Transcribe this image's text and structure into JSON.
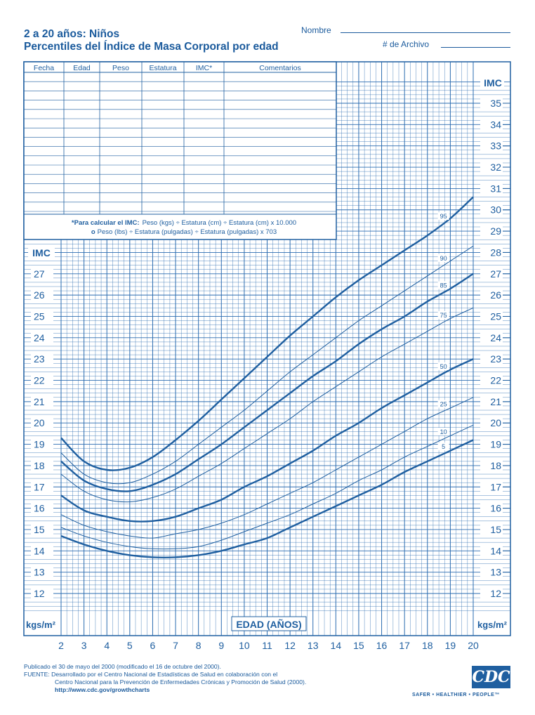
{
  "header": {
    "title_line1": "2 a 20 años: Niños",
    "title_line2": "Percentiles del Índice de Masa Corporal por edad",
    "name_label": "Nombre",
    "record_label": "# de Archivo"
  },
  "record_table": {
    "columns": [
      "Fecha",
      "Edad",
      "Peso",
      "Estatura",
      "IMC*",
      "Comentarios"
    ],
    "formula_line1_bold": "*Para calcular el IMC:",
    "formula_line1": "Peso (kgs) ÷ Estatura (cm) ÷ Estatura (cm) x 10.000",
    "formula_line2_bold": "o",
    "formula_line2": "Peso (lbs) ÷ Estatura (pulgadas) ÷ Estatura (pulgadas) x 703"
  },
  "chart_data": {
    "type": "line",
    "xlabel": "EDAD (AÑOS)",
    "ylabel": "IMC",
    "unit_label": "kgs/m²",
    "xlim": [
      2,
      20
    ],
    "ylim": [
      11,
      37
    ],
    "x_ticks": [
      2,
      3,
      4,
      5,
      6,
      7,
      8,
      9,
      10,
      11,
      12,
      13,
      14,
      15,
      16,
      17,
      18,
      19,
      20
    ],
    "y_ticks_right": [
      12,
      13,
      14,
      15,
      16,
      17,
      18,
      19,
      20,
      21,
      22,
      23,
      24,
      25,
      26,
      27,
      28,
      29,
      30,
      31,
      32,
      33,
      34,
      35
    ],
    "y_ticks_left": [
      12,
      13,
      14,
      15,
      16,
      17,
      18,
      19,
      20,
      21,
      22,
      23,
      24,
      25,
      26,
      27
    ],
    "grid": true,
    "x": [
      2,
      3,
      4,
      5,
      6,
      7,
      8,
      9,
      10,
      11,
      12,
      13,
      14,
      15,
      16,
      17,
      18,
      19,
      20
    ],
    "series": [
      {
        "name": "95",
        "bold": true,
        "values": [
          19.3,
          18.2,
          17.8,
          17.9,
          18.4,
          19.2,
          20.1,
          21.1,
          22.1,
          23.1,
          24.1,
          25.0,
          25.9,
          26.7,
          27.4,
          28.1,
          28.8,
          29.6,
          30.6
        ]
      },
      {
        "name": "90",
        "bold": false,
        "values": [
          18.6,
          17.6,
          17.2,
          17.2,
          17.6,
          18.2,
          19.0,
          19.8,
          20.6,
          21.5,
          22.4,
          23.2,
          24.0,
          24.8,
          25.5,
          26.2,
          26.9,
          27.6,
          28.3
        ]
      },
      {
        "name": "85",
        "bold": true,
        "values": [
          18.2,
          17.3,
          16.9,
          16.8,
          17.1,
          17.6,
          18.3,
          19.0,
          19.8,
          20.6,
          21.4,
          22.2,
          22.9,
          23.7,
          24.4,
          25.0,
          25.7,
          26.3,
          27.0
        ]
      },
      {
        "name": "75",
        "bold": false,
        "values": [
          17.6,
          16.8,
          16.4,
          16.3,
          16.5,
          16.9,
          17.5,
          18.1,
          18.8,
          19.5,
          20.2,
          21.0,
          21.7,
          22.4,
          23.1,
          23.7,
          24.3,
          24.9,
          25.4
        ]
      },
      {
        "name": "50",
        "bold": true,
        "values": [
          16.6,
          15.9,
          15.6,
          15.4,
          15.4,
          15.6,
          16.0,
          16.4,
          17.0,
          17.5,
          18.1,
          18.7,
          19.4,
          20.0,
          20.7,
          21.3,
          21.9,
          22.5,
          23.0
        ]
      },
      {
        "name": "25",
        "bold": false,
        "values": [
          15.7,
          15.2,
          14.9,
          14.7,
          14.6,
          14.8,
          15.0,
          15.3,
          15.7,
          16.2,
          16.7,
          17.2,
          17.8,
          18.4,
          19.0,
          19.6,
          20.2,
          20.7,
          21.2
        ]
      },
      {
        "name": "10",
        "bold": false,
        "values": [
          15.1,
          14.7,
          14.4,
          14.2,
          14.1,
          14.1,
          14.2,
          14.5,
          14.9,
          15.3,
          15.7,
          16.2,
          16.7,
          17.3,
          17.8,
          18.4,
          18.9,
          19.4,
          19.9
        ]
      },
      {
        "name": "5",
        "bold": true,
        "values": [
          14.7,
          14.3,
          14.0,
          13.8,
          13.7,
          13.7,
          13.8,
          14.0,
          14.3,
          14.6,
          15.1,
          15.6,
          16.1,
          16.6,
          17.1,
          17.7,
          18.2,
          18.7,
          19.2
        ]
      }
    ]
  },
  "footer": {
    "line1": "Publicado el 30 de mayo del 2000 (modificado el 16 de octubre del 2000).",
    "line2": "FUENTE: Desarrollado por el Centro Nacional de Estadísticas de Salud en colaboración con el",
    "line3": "Centro Nacional para la Prevención de Enfermedades Crónicas y Promoción de Salud (2000).",
    "url": "http://www.cdc.gov/growthcharts"
  },
  "logo": {
    "text": "CDC",
    "tagline": "SAFER • HEALTHIER • PEOPLE™"
  },
  "colors": {
    "ink": "#1f5fa0",
    "grid": "#2b6cb0"
  }
}
